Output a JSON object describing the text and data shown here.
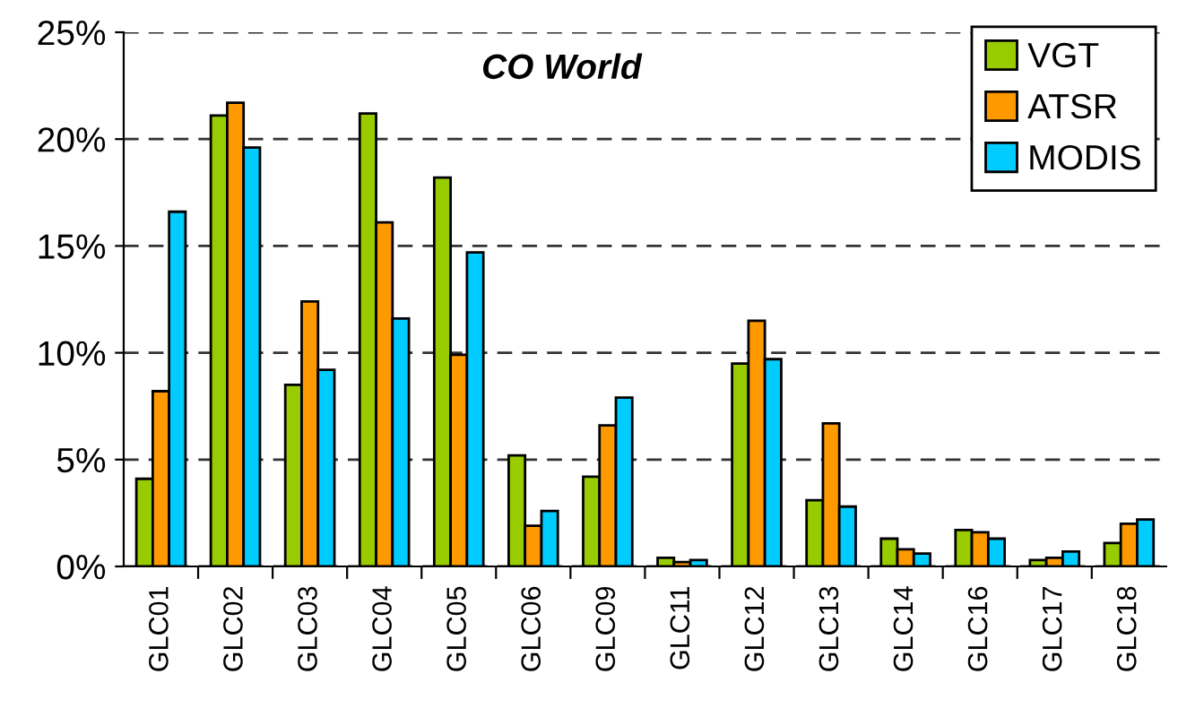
{
  "chart_data": {
    "type": "bar",
    "title": "CO World",
    "categories": [
      "GLC01",
      "GLC02",
      "GLC03",
      "GLC04",
      "GLC05",
      "GLC06",
      "GLC09",
      "GLC11",
      "GLC12",
      "GLC13",
      "GLC14",
      "GLC16",
      "GLC17",
      "GLC18"
    ],
    "series": [
      {
        "name": "VGT",
        "color": "#99cc00",
        "values": [
          4.1,
          21.1,
          8.5,
          21.2,
          18.2,
          5.2,
          4.2,
          0.4,
          9.5,
          3.1,
          1.3,
          1.7,
          0.3,
          1.1
        ]
      },
      {
        "name": "ATSR",
        "color": "#ff9900",
        "values": [
          8.2,
          21.7,
          12.4,
          16.1,
          9.9,
          1.9,
          6.6,
          0.2,
          11.5,
          6.7,
          0.8,
          1.6,
          0.4,
          2.0
        ]
      },
      {
        "name": "MODIS",
        "color": "#00ccff",
        "values": [
          16.6,
          19.6,
          9.2,
          11.6,
          14.7,
          2.6,
          7.9,
          0.3,
          9.7,
          2.8,
          0.6,
          1.3,
          0.7,
          2.2
        ]
      }
    ],
    "ylim": [
      0,
      25
    ],
    "yticks": [
      {
        "value": 0,
        "label": "0%"
      },
      {
        "value": 5,
        "label": "5%"
      },
      {
        "value": 10,
        "label": "10%"
      },
      {
        "value": 15,
        "label": "15%"
      },
      {
        "value": 20,
        "label": "20%"
      },
      {
        "value": 25,
        "label": "25%"
      }
    ],
    "grid": "y",
    "legend": "top right"
  }
}
